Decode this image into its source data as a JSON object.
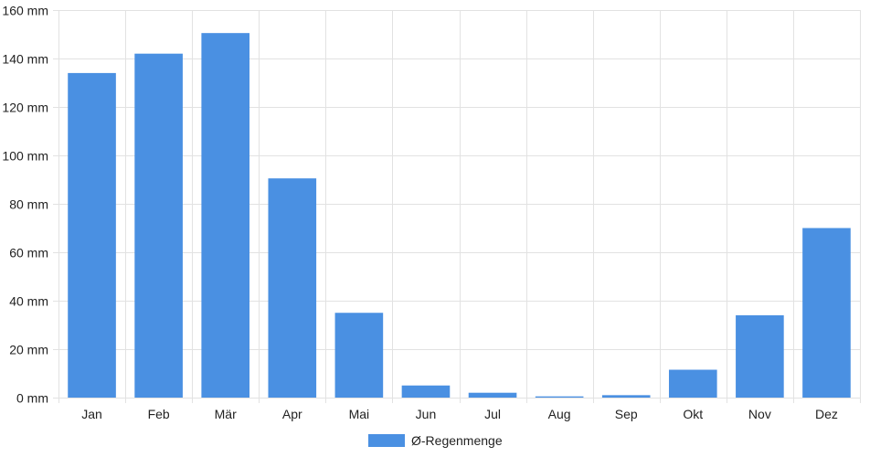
{
  "chart_data": {
    "type": "bar",
    "categories": [
      "Jan",
      "Feb",
      "Mär",
      "Apr",
      "Mai",
      "Jun",
      "Jul",
      "Aug",
      "Sep",
      "Okt",
      "Nov",
      "Dez"
    ],
    "series": [
      {
        "name": "Ø-Regenmenge",
        "values": [
          134,
          142,
          150.5,
          90.5,
          35,
          5,
          2,
          0.5,
          1,
          11.5,
          34,
          70
        ],
        "color": "#4a90e2"
      }
    ],
    "unit_suffix": " mm",
    "ylim": [
      0,
      160
    ],
    "yticks": [
      0,
      20,
      40,
      60,
      80,
      100,
      120,
      140,
      160
    ],
    "grid": true,
    "legend_position": "bottom",
    "title": "",
    "xlabel": "",
    "ylabel": ""
  }
}
